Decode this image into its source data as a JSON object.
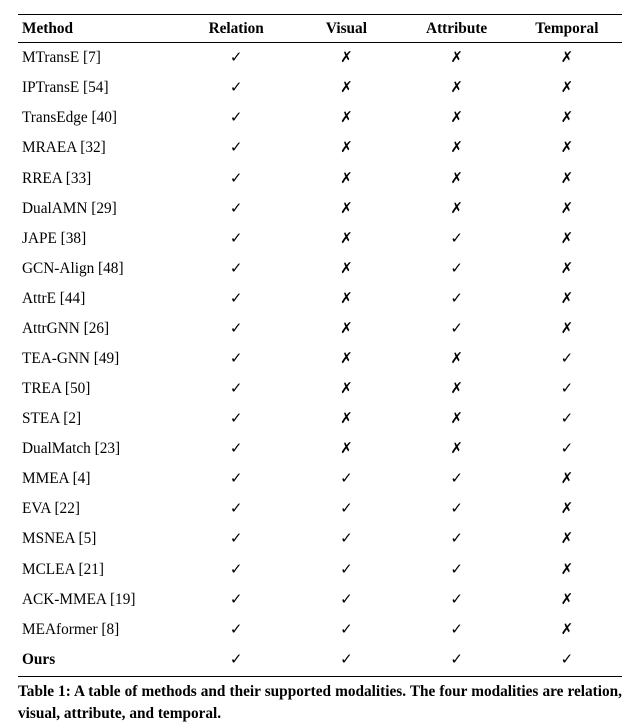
{
  "headers": [
    "Method",
    "Relation",
    "Visual",
    "Attribute",
    "Temporal"
  ],
  "check_glyph": "✓",
  "cross_glyph": "✗",
  "check_color": "#000000",
  "cross_color": "#000000",
  "rows": [
    {
      "name": "MTransE",
      "ref": "[7]",
      "bold": false,
      "vals": [
        true,
        false,
        false,
        false
      ]
    },
    {
      "name": "IPTransE",
      "ref": "[54]",
      "bold": false,
      "vals": [
        true,
        false,
        false,
        false
      ]
    },
    {
      "name": "TransEdge",
      "ref": "[40]",
      "bold": false,
      "vals": [
        true,
        false,
        false,
        false
      ]
    },
    {
      "name": "MRAEA",
      "ref": "[32]",
      "bold": false,
      "vals": [
        true,
        false,
        false,
        false
      ]
    },
    {
      "name": "RREA",
      "ref": "[33]",
      "bold": false,
      "vals": [
        true,
        false,
        false,
        false
      ]
    },
    {
      "name": "DualAMN",
      "ref": "[29]",
      "bold": false,
      "vals": [
        true,
        false,
        false,
        false
      ]
    },
    {
      "name": "JAPE",
      "ref": "[38]",
      "bold": false,
      "vals": [
        true,
        false,
        true,
        false
      ]
    },
    {
      "name": "GCN-Align",
      "ref": "[48]",
      "bold": false,
      "vals": [
        true,
        false,
        true,
        false
      ]
    },
    {
      "name": "AttrE",
      "ref": "[44]",
      "bold": false,
      "vals": [
        true,
        false,
        true,
        false
      ]
    },
    {
      "name": "AttrGNN",
      "ref": "[26]",
      "bold": false,
      "vals": [
        true,
        false,
        true,
        false
      ]
    },
    {
      "name": "TEA-GNN",
      "ref": "[49]",
      "bold": false,
      "vals": [
        true,
        false,
        false,
        true
      ]
    },
    {
      "name": "TREA",
      "ref": "[50]",
      "bold": false,
      "vals": [
        true,
        false,
        false,
        true
      ]
    },
    {
      "name": "STEA",
      "ref": "[2]",
      "bold": false,
      "vals": [
        true,
        false,
        false,
        true
      ]
    },
    {
      "name": "DualMatch",
      "ref": "[23]",
      "bold": false,
      "vals": [
        true,
        false,
        false,
        true
      ]
    },
    {
      "name": "MMEA",
      "ref": "[4]",
      "bold": false,
      "vals": [
        true,
        true,
        true,
        false
      ]
    },
    {
      "name": "EVA",
      "ref": "[22]",
      "bold": false,
      "vals": [
        true,
        true,
        true,
        false
      ]
    },
    {
      "name": "MSNEA",
      "ref": "[5]",
      "bold": false,
      "vals": [
        true,
        true,
        true,
        false
      ]
    },
    {
      "name": "MCLEA",
      "ref": "[21]",
      "bold": false,
      "vals": [
        true,
        true,
        true,
        false
      ]
    },
    {
      "name": "ACK-MMEA",
      "ref": "[19]",
      "bold": false,
      "vals": [
        true,
        true,
        true,
        false
      ]
    },
    {
      "name": "MEAformer",
      "ref": "[8]",
      "bold": false,
      "vals": [
        true,
        true,
        true,
        false
      ]
    },
    {
      "name": "Ours",
      "ref": "",
      "bold": true,
      "vals": [
        true,
        true,
        true,
        true
      ]
    }
  ],
  "caption": "Table 1: A table of methods and their supported modalities. The four modalities are relation, visual, attribute, and temporal."
}
